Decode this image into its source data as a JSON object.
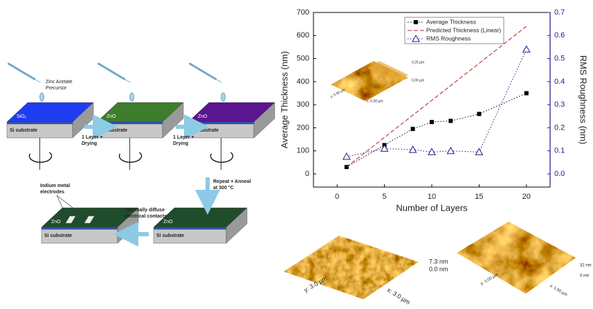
{
  "schematic": {
    "precursor": [
      "Zinc Acetate",
      "Precursor"
    ],
    "blocks": [
      {
        "layer": "SiO₂",
        "substrate": "Si substrate"
      },
      {
        "layer": "ZnO",
        "substrate": "Si substrate"
      },
      {
        "layer": "ZnO",
        "substrate": "Si substrate"
      },
      {
        "layer": "ZnO",
        "substrate": "Si substrate"
      },
      {
        "layer": "ZnO",
        "substrate": "Si substrate"
      }
    ],
    "steps": [
      [
        "1 Layer +",
        "Drying"
      ],
      [
        "1 Layer +",
        "Drying"
      ],
      [
        "Repeat + Anneal",
        "at 300 °C"
      ],
      [
        "Thermally diffuse",
        "electrical contacts"
      ]
    ],
    "electrodes": [
      "Indium metal",
      "electrodes"
    ]
  },
  "chart_data": {
    "type": "line",
    "xlabel": "Number of Layers",
    "ylabel": "Average Thickness (nm)",
    "y2label": "RMS Roughness (nm)",
    "xlim": [
      -2.5,
      22.5
    ],
    "xticks": [
      0,
      5,
      10,
      15,
      20
    ],
    "ylim": [
      -57,
      700
    ],
    "yticks": [
      0,
      100,
      200,
      300,
      400,
      500,
      600,
      700
    ],
    "y2lim": [
      -0.057,
      0.7
    ],
    "y2ticks": [
      {
        "value": 0,
        "label": "0.0"
      },
      0.1,
      0.2,
      0.3,
      0.4,
      0.5,
      0.6,
      0.7
    ],
    "legend": "upper center",
    "series": [
      {
        "name": "Average Thickness",
        "color": "#000000",
        "marker": "square",
        "dash": "dotted",
        "x": [
          1,
          5,
          8,
          10,
          12,
          15,
          20
        ],
        "values": [
          30,
          125,
          195,
          225,
          230,
          260,
          350
        ]
      },
      {
        "name": "Predicted Thickness (Linear)",
        "color": "#b02020",
        "marker": "none",
        "dash": "dashed",
        "x": [
          1,
          20
        ],
        "values": [
          30,
          640
        ]
      },
      {
        "name": "RMS Roughness",
        "color": "#1a1a8c",
        "marker": "triangle",
        "dash": "dotted",
        "axis": "y2",
        "x": [
          1,
          5,
          8,
          10,
          12,
          15,
          20
        ],
        "values": [
          0.075,
          0.11,
          0.105,
          0.095,
          0.1,
          0.095,
          0.54
        ]
      }
    ]
  },
  "afm": {
    "inset": {
      "z_top": "0.25 µm",
      "z_bottom": "0.00 µm",
      "x": "x: 5.00 µm",
      "y": "y: 5.00 µm"
    },
    "left": {
      "z_top": "7.3 nm",
      "z_bottom": "0.0 nm",
      "x": "x: 3.0 µm",
      "y": "y: 3.0 µm"
    },
    "right": {
      "z_top": "32 nm",
      "z_bottom": "0 nm",
      "x": "x: 1.00 µm",
      "y": "y: 1.00 µm"
    }
  }
}
